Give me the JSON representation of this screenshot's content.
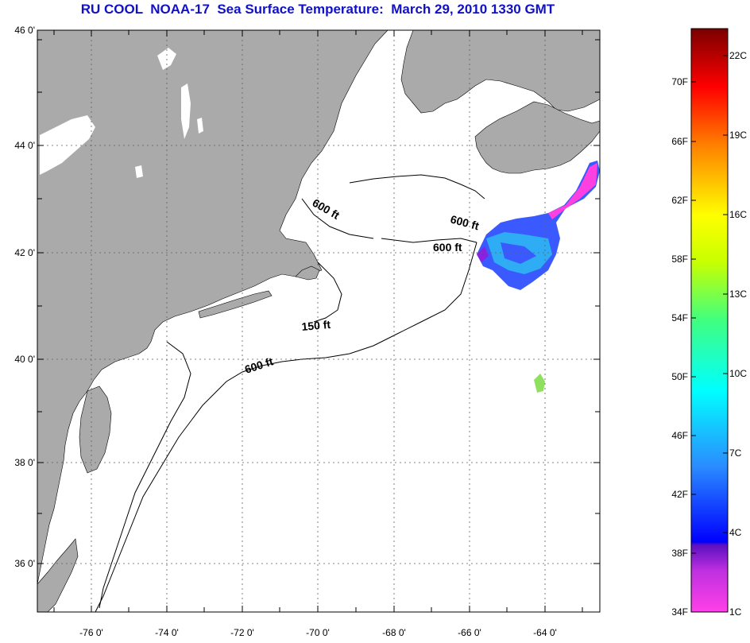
{
  "title": "RU COOL  NOAA-17  Sea Surface Temperature:  March 29, 2010 1330 GMT",
  "map": {
    "lat_ticks": [
      "46 0'",
      "44 0'",
      "42 0'",
      "40 0'",
      "38 0'",
      "36 0'"
    ],
    "lon_ticks": [
      "-76 0'",
      "-74 0'",
      "-72 0'",
      "-70 0'",
      "-68 0'",
      "-66 0'",
      "-64 0'"
    ],
    "contour_labels": [
      "600 ft",
      "600 ft",
      "600 ft",
      "150 ft",
      "600 ft"
    ],
    "colors": {
      "land": "#aaaaaa",
      "water": "#ffffff",
      "grid": "#606060"
    }
  },
  "colorbar": {
    "fahrenheit": [
      "70F",
      "66F",
      "62F",
      "58F",
      "54F",
      "50F",
      "46F",
      "42F",
      "38F",
      "34F"
    ],
    "celsius": [
      "22C",
      "19C",
      "16C",
      "13C",
      "10C",
      "7C",
      "4C",
      "1C"
    ],
    "range_f": [
      34,
      74
    ]
  }
}
